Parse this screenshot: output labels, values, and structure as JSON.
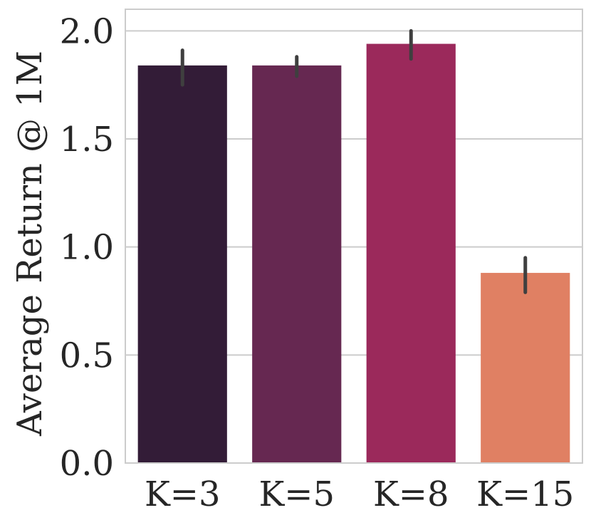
{
  "chart_data": {
    "type": "bar",
    "title": "",
    "xlabel": "",
    "ylabel": "Average Return @ 1M",
    "categories": [
      "K=3",
      "K=5",
      "K=8",
      "K=15"
    ],
    "values": [
      1.84,
      1.84,
      1.94,
      0.88
    ],
    "error_low": [
      1.75,
      1.79,
      1.87,
      0.79
    ],
    "error_high": [
      1.91,
      1.88,
      2.0,
      0.95
    ],
    "colors": [
      "#331c37",
      "#662851",
      "#9b295b",
      "#e08063"
    ],
    "ylim": [
      0,
      2.1
    ],
    "yticks": [
      0.0,
      0.5,
      1.0,
      1.5,
      2.0
    ],
    "ytick_labels": [
      "0.0",
      "0.5",
      "1.0",
      "1.5",
      "2.0"
    ],
    "grid": "horizontal",
    "error_bar_color": "#3f3f3f"
  }
}
